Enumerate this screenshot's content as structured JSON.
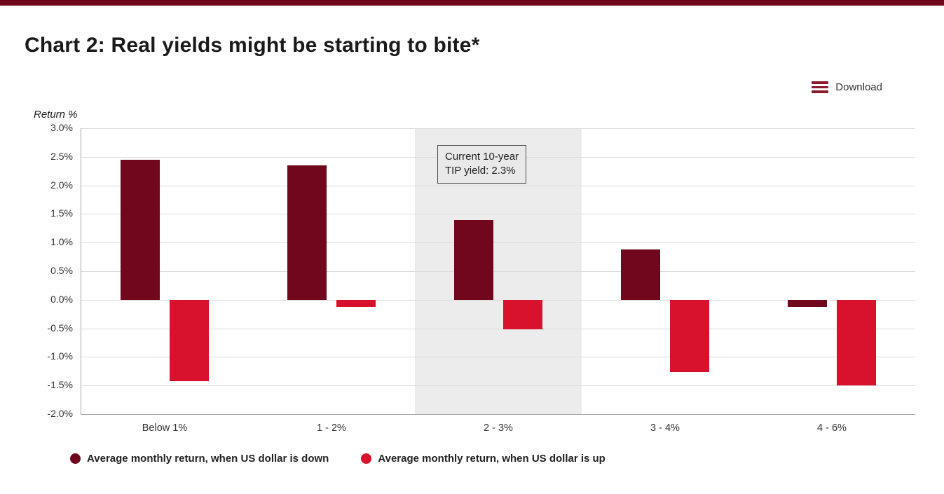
{
  "accent_color": "#70071C",
  "title": "Chart 2: Real yields might be starting to bite*",
  "download": {
    "label": "Download"
  },
  "chart_data": {
    "type": "bar",
    "title": "Chart 2: Real yields might be starting to bite*",
    "ylabel": "Return %",
    "xlabel": "",
    "categories": [
      "Below 1%",
      "1 - 2%",
      "2 - 3%",
      "3 - 4%",
      "4 - 6%"
    ],
    "series": [
      {
        "name": "Average monthly return, when US dollar is down",
        "color": "#70071C",
        "values": [
          2.45,
          2.35,
          1.4,
          0.88,
          -0.13
        ]
      },
      {
        "name": "Average monthly return, when US dollar is up",
        "color": "#D8112D",
        "values": [
          -1.42,
          -0.13,
          -0.52,
          -1.27,
          -1.5
        ]
      }
    ],
    "ylim": [
      -2.0,
      3.0
    ],
    "ytick_step": 0.5,
    "ytick_labels": [
      "3.0%",
      "2.5%",
      "2.0%",
      "1.5%",
      "1.0%",
      "0.5%",
      "0.0%",
      "-0.5%",
      "-1.0%",
      "-1.5%",
      "-2.0%"
    ],
    "grid": true,
    "legend_position": "bottom",
    "highlight": {
      "category": "2 - 3%",
      "category_index": 2,
      "color": "#ECECEC"
    },
    "annotation": {
      "text": "Current 10-year\nTIP yield: 2.3%"
    }
  }
}
